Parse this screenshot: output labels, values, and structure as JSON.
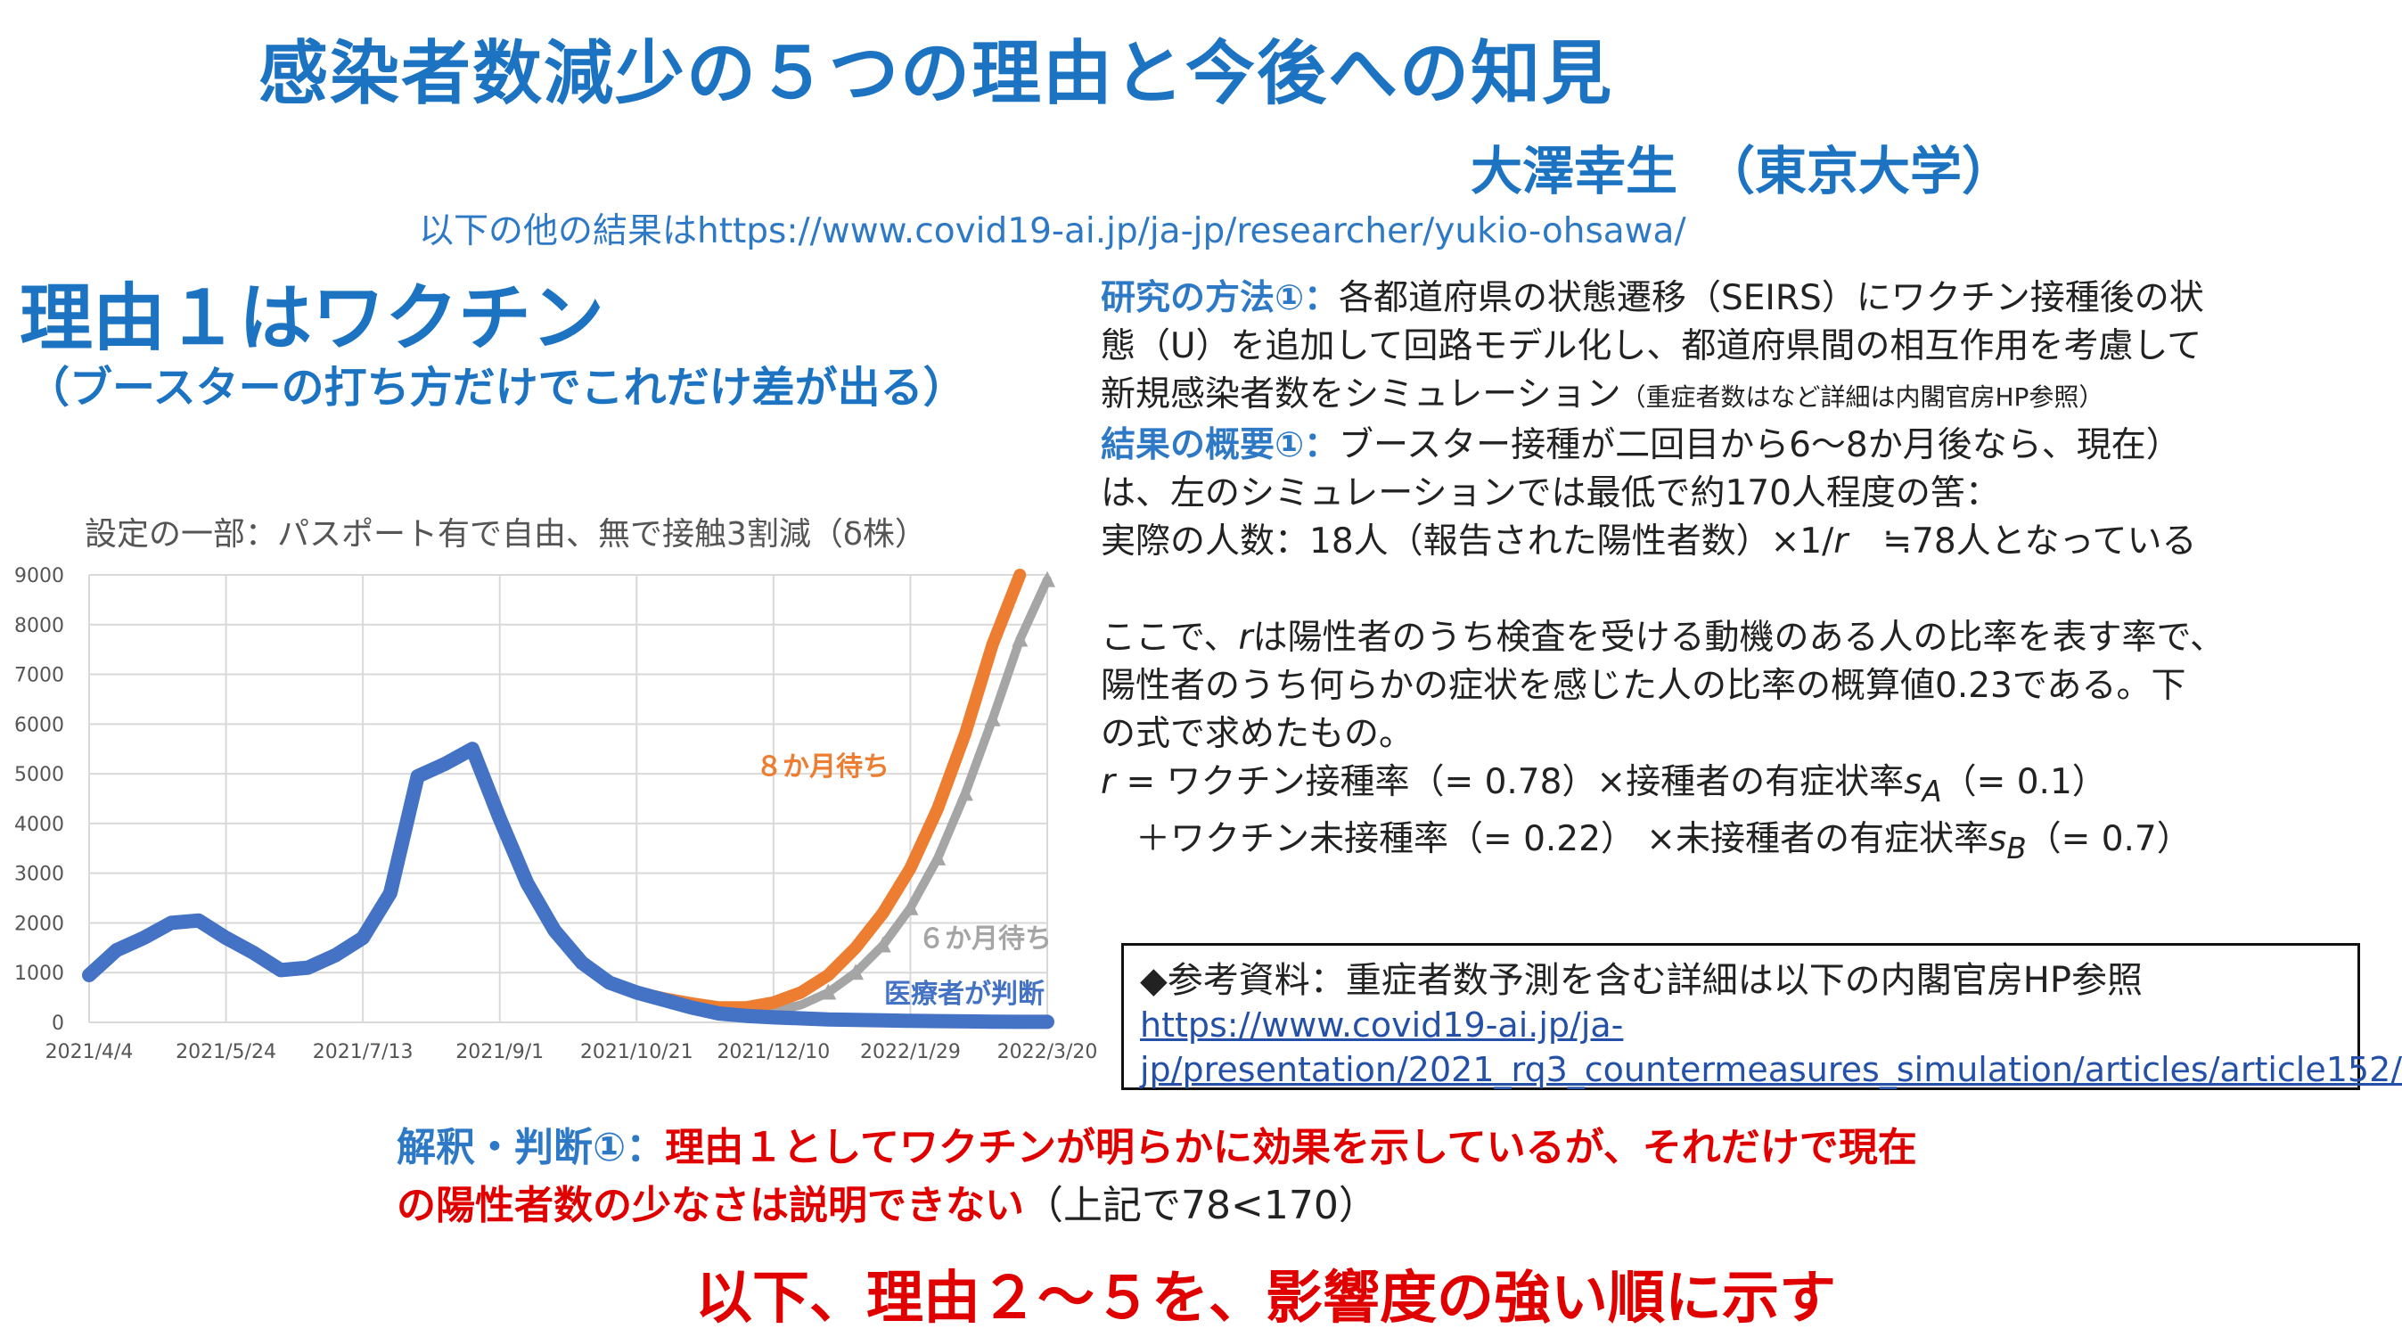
{
  "header": {
    "title": "感染者数減少の５つの理由と今後への知見",
    "author": "大澤幸生　（東京大学）",
    "results_url": "以下の他の結果はhttps://www.covid19-ai.jp/ja-jp/researcher/yukio-ohsawa/"
  },
  "reason1": {
    "title": "理由１はワクチン",
    "subtitle": "（ブースターの打ち方だけでこれだけ差が出る）"
  },
  "chart_data": {
    "type": "line",
    "title": "設定の一部：パスポート有で自由、無で接触3割減（δ株）",
    "xlabel": "",
    "ylabel": "",
    "x_ticks": [
      "2021/4/4",
      "2021/5/24",
      "2021/7/13",
      "2021/9/1",
      "2021/10/21",
      "2021/12/10",
      "2022/1/29",
      "2022/3/20"
    ],
    "y_ticks": [
      0,
      1000,
      2000,
      3000,
      4000,
      5000,
      6000,
      7000,
      8000,
      9000
    ],
    "ylim": [
      0,
      9000
    ],
    "grid": true,
    "legend": "inline labels",
    "x": [
      "2021/4/4",
      "2021/4/14",
      "2021/4/24",
      "2021/5/4",
      "2021/5/14",
      "2021/5/24",
      "2021/6/3",
      "2021/6/13",
      "2021/6/23",
      "2021/7/3",
      "2021/7/13",
      "2021/7/23",
      "2021/8/2",
      "2021/8/12",
      "2021/8/22",
      "2021/9/1",
      "2021/9/11",
      "2021/9/21",
      "2021/10/1",
      "2021/10/11",
      "2021/10/21",
      "2021/10/31",
      "2021/11/10",
      "2021/11/20",
      "2021/11/30",
      "2021/12/10",
      "2021/12/20",
      "2021/12/30",
      "2022/1/9",
      "2022/1/19",
      "2022/1/29",
      "2022/2/8",
      "2022/2/18",
      "2022/2/28",
      "2022/3/10",
      "2022/3/20"
    ],
    "series": [
      {
        "name": "８か月待ち",
        "color": "#ed7d31",
        "values": [
          950,
          1450,
          1700,
          2000,
          2050,
          1700,
          1400,
          1050,
          1100,
          1350,
          1700,
          2600,
          4950,
          5200,
          5500,
          4100,
          2800,
          1850,
          1200,
          800,
          600,
          480,
          380,
          300,
          300,
          400,
          600,
          950,
          1500,
          2200,
          3100,
          4300,
          5800,
          7600,
          9000,
          null
        ]
      },
      {
        "name": "６か月待ち",
        "color": "#a5a5a5",
        "values": [
          950,
          1450,
          1700,
          2000,
          2050,
          1700,
          1400,
          1050,
          1100,
          1350,
          1700,
          2600,
          4950,
          5200,
          5500,
          4100,
          2800,
          1850,
          1200,
          800,
          600,
          460,
          330,
          230,
          200,
          230,
          350,
          600,
          1000,
          1550,
          2300,
          3300,
          4600,
          6100,
          7700,
          8900
        ]
      },
      {
        "name": "医療者が判断",
        "color": "#4472c4",
        "values": [
          950,
          1450,
          1700,
          2000,
          2050,
          1700,
          1400,
          1050,
          1100,
          1350,
          1700,
          2600,
          4950,
          5200,
          5500,
          4100,
          2800,
          1850,
          1200,
          800,
          600,
          450,
          300,
          180,
          130,
          100,
          80,
          60,
          50,
          40,
          30,
          25,
          20,
          15,
          10,
          10
        ]
      }
    ]
  },
  "description": {
    "method_label": "研究の方法①：",
    "method_text_1": "各都道府県の状態遷移（SEIRS）にワクチン接種後の状",
    "method_text_2": "態（U）を追加して回路モデル化し、都道府県間の相互作用を考慮して",
    "method_text_3": "新規感染者数をシミュレーション",
    "method_note": "（重症者数はなど詳細は内閣官房HP参照）",
    "result_label": "結果の概要①：",
    "result_text_1": "ブースター接種が二回目から6〜8か月後なら、現在）",
    "result_text_2": "は、左のシミュレーションでは最低で約170人程度の筈：",
    "result_text_3": "実際の人数：18人（報告された陽性者数）×1/",
    "result_r": "r",
    "result_text_4": "　≒78人となっている",
    "def_text_1a": "ここで、",
    "def_text_1b": "は陽性者のうち検査を受ける動機のある人の比率を表す率で、",
    "def_text_2": "陽性者のうち何らかの症状を感じた人の比率の概算値0.23である。下",
    "def_text_3": "の式で求めたもの。",
    "formula_1a": " = ワクチン接種率（= 0.78）×接種者の有症状率",
    "formula_s": "s",
    "formula_sub_a": "A",
    "formula_1b": "（= 0.1）",
    "formula_2a": "　＋ワクチン未接種率（= 0.22）  ×未接種者の有症状率",
    "formula_sub_b": "B",
    "formula_2b": "（= 0.7）"
  },
  "reference": {
    "heading": "◆参考資料：重症者数予測を含む詳細は以下の内閣官房HP参照",
    "link_1": "https://www.covid19-ai.jp/ja-",
    "link_2": "jp/presentation/2021_rq3_countermeasures_simulation/articles/article152/"
  },
  "interpretation": {
    "label": "解釈・判断①：",
    "text_1": "理由１としてワクチンが明らかに効果を示しているが、それだけで現在",
    "text_2": "の陽性者数の少なさは説明できない",
    "note": "（上記で78<170）"
  },
  "footer": "以下、理由２〜５を、影響度の強い順に示す"
}
